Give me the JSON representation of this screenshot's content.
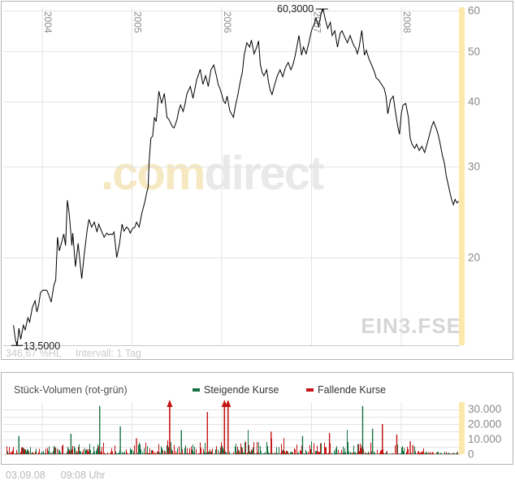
{
  "price_panel": {
    "watermark": {
      "part1": ".com",
      "part2": "direct",
      "color_com": "#f6e8c0",
      "color_direct": "#e9e9e9"
    },
    "symbol_label": "EIN3.FSE",
    "max_annotation": "60,3000",
    "min_annotation": "13,5000",
    "status_left": "346,67 %HL",
    "status_right": "Intervall: 1 Tag"
  },
  "volume_panel": {
    "title": "Stück-Volumen (rot-grün)",
    "legend": [
      {
        "label": "Steigende Kurse",
        "color": "#177245"
      },
      {
        "label": "Fallende Kurse",
        "color": "#c41414"
      }
    ]
  },
  "footer": {
    "date": "03.09.08",
    "time": "09:08 Uhr"
  },
  "colors": {
    "grid": "#e4e4e4",
    "axis_line": "#c9c9c9",
    "tick_label": "#8a8a8a",
    "year_label": "#8a8a8a",
    "price_line": "#000000",
    "highlight_band": "#fbe8ab",
    "volume_up": "#177245",
    "volume_down": "#c41414",
    "panel_border": "#b4b4b4"
  },
  "chart_data": [
    {
      "type": "line",
      "name": "price",
      "symbol": "EIN3.FSE",
      "scale": "log",
      "interval": "1 Tag",
      "x_ticks": [
        2004,
        2005,
        2006,
        2007,
        2008
      ],
      "x_tick_labels": [
        "2004",
        "2005",
        "2006",
        "2007",
        "2008"
      ],
      "y_ticks": [
        60,
        50,
        40,
        30,
        20
      ],
      "y_tick_labels": [
        "60",
        "50",
        "40",
        "30",
        "20"
      ],
      "x_range_years": [
        2003.68,
        2008.64
      ],
      "ylim": [
        13.0,
        62.0
      ],
      "max_point": {
        "year": 2007.13,
        "value": 60.3,
        "label": "60,3000"
      },
      "min_point": {
        "year": 2003.72,
        "value": 13.5,
        "label": "13,5000"
      },
      "change_percent_hl": "346,67 %HL",
      "series": [
        {
          "name": "EIN3.FSE",
          "points": [
            [
              2003.68,
              14.8
            ],
            [
              2003.7,
              13.9
            ],
            [
              2003.72,
              13.5
            ],
            [
              2003.74,
              14.6
            ],
            [
              2003.76,
              13.9
            ],
            [
              2003.79,
              14.8
            ],
            [
              2003.81,
              14.5
            ],
            [
              2003.84,
              15.3
            ],
            [
              2003.86,
              15.0
            ],
            [
              2003.89,
              16.0
            ],
            [
              2003.92,
              16.5
            ],
            [
              2003.94,
              15.7
            ],
            [
              2003.96,
              16.2
            ],
            [
              2003.98,
              17.1
            ],
            [
              2004.03,
              17.3
            ],
            [
              2004.07,
              17.0
            ],
            [
              2004.1,
              16.4
            ],
            [
              2004.13,
              17.7
            ],
            [
              2004.15,
              18.1
            ],
            [
              2004.17,
              21.9
            ],
            [
              2004.19,
              20.6
            ],
            [
              2004.22,
              21.5
            ],
            [
              2004.24,
              22.2
            ],
            [
              2004.26,
              21.1
            ],
            [
              2004.28,
              25.8
            ],
            [
              2004.3,
              24.4
            ],
            [
              2004.33,
              21.1
            ],
            [
              2004.34,
              22.3
            ],
            [
              2004.37,
              19.2
            ],
            [
              2004.4,
              21.3
            ],
            [
              2004.42,
              19.7
            ],
            [
              2004.44,
              18.2
            ],
            [
              2004.47,
              20.4
            ],
            [
              2004.5,
              22.6
            ],
            [
              2004.52,
              23.7
            ],
            [
              2004.55,
              22.9
            ],
            [
              2004.58,
              23.4
            ],
            [
              2004.61,
              22.4
            ],
            [
              2004.63,
              23.2
            ],
            [
              2004.66,
              22.5
            ],
            [
              2004.69,
              21.9
            ],
            [
              2004.72,
              22.3
            ],
            [
              2004.76,
              22.2
            ],
            [
              2004.8,
              22.4
            ],
            [
              2004.83,
              20.0
            ],
            [
              2004.86,
              21.2
            ],
            [
              2004.89,
              23.2
            ],
            [
              2004.91,
              22.5
            ],
            [
              2004.94,
              22.9
            ],
            [
              2004.98,
              22.3
            ],
            [
              2005.01,
              22.8
            ],
            [
              2005.05,
              23.4
            ],
            [
              2005.08,
              22.9
            ],
            [
              2005.11,
              24.4
            ],
            [
              2005.14,
              25.5
            ],
            [
              2005.16,
              26.5
            ],
            [
              2005.18,
              27.4
            ],
            [
              2005.19,
              30.5
            ],
            [
              2005.21,
              34.0
            ],
            [
              2005.23,
              34.3
            ],
            [
              2005.25,
              37.3
            ],
            [
              2005.27,
              36.6
            ],
            [
              2005.3,
              41.9
            ],
            [
              2005.33,
              39.7
            ],
            [
              2005.36,
              41.5
            ],
            [
              2005.39,
              37.3
            ],
            [
              2005.43,
              36.4
            ],
            [
              2005.47,
              35.6
            ],
            [
              2005.5,
              36.9
            ],
            [
              2005.54,
              39.4
            ],
            [
              2005.57,
              38.3
            ],
            [
              2005.61,
              41.3
            ],
            [
              2005.65,
              42.8
            ],
            [
              2005.68,
              40.6
            ],
            [
              2005.72,
              44.1
            ],
            [
              2005.76,
              46.2
            ],
            [
              2005.79,
              43.2
            ],
            [
              2005.82,
              44.9
            ],
            [
              2005.85,
              42.8
            ],
            [
              2005.88,
              46.1
            ],
            [
              2005.91,
              47.1
            ],
            [
              2005.94,
              44.9
            ],
            [
              2005.96,
              43.2
            ],
            [
              2005.98,
              42.4
            ],
            [
              2006.0,
              41.3
            ],
            [
              2006.04,
              39.7
            ],
            [
              2006.06,
              41.0
            ],
            [
              2006.09,
              38.4
            ],
            [
              2006.13,
              37.3
            ],
            [
              2006.15,
              39.1
            ],
            [
              2006.18,
              41.3
            ],
            [
              2006.2,
              43.2
            ],
            [
              2006.23,
              45.7
            ],
            [
              2006.25,
              49.2
            ],
            [
              2006.28,
              52.0
            ],
            [
              2006.31,
              51.0
            ],
            [
              2006.33,
              52.6
            ],
            [
              2006.36,
              49.5
            ],
            [
              2006.39,
              51.0
            ],
            [
              2006.41,
              52.4
            ],
            [
              2006.43,
              47.2
            ],
            [
              2006.47,
              44.9
            ],
            [
              2006.5,
              46.1
            ],
            [
              2006.52,
              43.7
            ],
            [
              2006.56,
              41.3
            ],
            [
              2006.59,
              43.2
            ],
            [
              2006.62,
              44.9
            ],
            [
              2006.65,
              46.1
            ],
            [
              2006.68,
              44.7
            ],
            [
              2006.71,
              46.6
            ],
            [
              2006.74,
              47.6
            ],
            [
              2006.77,
              46.1
            ],
            [
              2006.81,
              48.4
            ],
            [
              2006.83,
              50.3
            ],
            [
              2006.86,
              53.7
            ],
            [
              2006.89,
              49.2
            ],
            [
              2006.91,
              51.0
            ],
            [
              2006.94,
              49.5
            ],
            [
              2006.97,
              52.0
            ],
            [
              2007.0,
              54.9
            ],
            [
              2007.03,
              56.5
            ],
            [
              2007.05,
              58.0
            ],
            [
              2007.08,
              55.9
            ],
            [
              2007.11,
              59.5
            ],
            [
              2007.13,
              60.3
            ],
            [
              2007.15,
              58.0
            ],
            [
              2007.18,
              55.4
            ],
            [
              2007.21,
              56.9
            ],
            [
              2007.23,
              53.7
            ],
            [
              2007.26,
              54.8
            ],
            [
              2007.29,
              51.0
            ],
            [
              2007.32,
              54.3
            ],
            [
              2007.34,
              54.8
            ],
            [
              2007.37,
              53.3
            ],
            [
              2007.4,
              52.0
            ],
            [
              2007.43,
              53.7
            ],
            [
              2007.47,
              51.4
            ],
            [
              2007.51,
              49.5
            ],
            [
              2007.53,
              51.0
            ],
            [
              2007.56,
              54.9
            ],
            [
              2007.59,
              49.2
            ],
            [
              2007.61,
              50.3
            ],
            [
              2007.64,
              48.4
            ],
            [
              2007.67,
              47.1
            ],
            [
              2007.7,
              45.7
            ],
            [
              2007.72,
              44.5
            ],
            [
              2007.75,
              44.0
            ],
            [
              2007.78,
              43.2
            ],
            [
              2007.81,
              42.4
            ],
            [
              2007.83,
              41.0
            ],
            [
              2007.85,
              37.9
            ],
            [
              2007.88,
              40.3
            ],
            [
              2007.91,
              41.0
            ],
            [
              2007.93,
              38.7
            ],
            [
              2007.96,
              35.9
            ],
            [
              2007.98,
              34.6
            ],
            [
              2008.0,
              37.9
            ],
            [
              2008.02,
              39.4
            ],
            [
              2008.05,
              39.7
            ],
            [
              2008.08,
              37.3
            ],
            [
              2008.1,
              34.0
            ],
            [
              2008.12,
              33.1
            ],
            [
              2008.15,
              32.5
            ],
            [
              2008.17,
              33.1
            ],
            [
              2008.2,
              32.2
            ],
            [
              2008.23,
              32.8
            ],
            [
              2008.26,
              31.9
            ],
            [
              2008.28,
              32.8
            ],
            [
              2008.31,
              34.3
            ],
            [
              2008.34,
              35.9
            ],
            [
              2008.36,
              36.6
            ],
            [
              2008.39,
              35.5
            ],
            [
              2008.41,
              34.6
            ],
            [
              2008.43,
              33.4
            ],
            [
              2008.46,
              31.4
            ],
            [
              2008.48,
              30.5
            ],
            [
              2008.5,
              28.8
            ],
            [
              2008.52,
              27.8
            ],
            [
              2008.54,
              26.8
            ],
            [
              2008.56,
              25.9
            ],
            [
              2008.58,
              25.3
            ],
            [
              2008.6,
              25.9
            ],
            [
              2008.62,
              25.5
            ],
            [
              2008.64,
              25.7
            ]
          ]
        }
      ]
    },
    {
      "type": "bar",
      "name": "volume",
      "title": "Stück-Volumen (rot-grün)",
      "x_ticks": [
        2004,
        2005,
        2006,
        2007,
        2008
      ],
      "y_ticks": [
        30000,
        20000,
        10000,
        0
      ],
      "y_tick_labels": [
        "30.000",
        "20.000",
        "10.000",
        "0"
      ],
      "grid_step": 5000,
      "ylim": [
        0,
        32000
      ],
      "x_range_years": [
        2003.68,
        2008.64
      ],
      "series": [
        {
          "name": "Steigende Kurse",
          "color": "#177245"
        },
        {
          "name": "Fallende Kurse",
          "color": "#c41414"
        }
      ],
      "generator": {
        "seed": 20080903,
        "base_min": 250,
        "power": 2.4,
        "boost_chance": 0.05,
        "envelope": [
          [
            2003.68,
            5000
          ],
          [
            2004.0,
            5500
          ],
          [
            2004.5,
            7000
          ],
          [
            2005.0,
            8000
          ],
          [
            2005.5,
            9000
          ],
          [
            2006.0,
            8500
          ],
          [
            2006.5,
            8000
          ],
          [
            2007.0,
            7500
          ],
          [
            2007.5,
            8500
          ],
          [
            2007.9,
            7000
          ],
          [
            2008.05,
            5000
          ],
          [
            2008.15,
            2200
          ],
          [
            2008.4,
            1400
          ],
          [
            2008.64,
            1200
          ]
        ]
      },
      "spikes": [
        {
          "year": 2003.74,
          "value": 12000,
          "dir": "up"
        },
        {
          "year": 2004.32,
          "value": 13500,
          "dir": "up"
        },
        {
          "year": 2004.64,
          "value": 33000,
          "dir": "up"
        },
        {
          "year": 2004.87,
          "value": 18500,
          "dir": "up"
        },
        {
          "year": 2005.05,
          "value": 10500,
          "dir": "down"
        },
        {
          "year": 2005.42,
          "value": 36000,
          "dir": "down",
          "clipped": true
        },
        {
          "year": 2005.55,
          "value": 16000,
          "dir": "up"
        },
        {
          "year": 2005.84,
          "value": 28000,
          "dir": "down"
        },
        {
          "year": 2006.03,
          "value": 36000,
          "dir": "down",
          "clipped": true
        },
        {
          "year": 2006.07,
          "value": 36000,
          "dir": "down",
          "clipped": true
        },
        {
          "year": 2006.55,
          "value": 15000,
          "dir": "down"
        },
        {
          "year": 2006.9,
          "value": 12000,
          "dir": "up"
        },
        {
          "year": 2007.2,
          "value": 14000,
          "dir": "down"
        },
        {
          "year": 2007.57,
          "value": 32500,
          "dir": "up"
        },
        {
          "year": 2007.68,
          "value": 17000,
          "dir": "up"
        },
        {
          "year": 2007.79,
          "value": 20000,
          "dir": "down"
        },
        {
          "year": 2007.95,
          "value": 13000,
          "dir": "down"
        },
        {
          "year": 2008.1,
          "value": 8500,
          "dir": "down"
        },
        {
          "year": 2008.13,
          "value": 6000,
          "dir": "down"
        }
      ]
    }
  ]
}
